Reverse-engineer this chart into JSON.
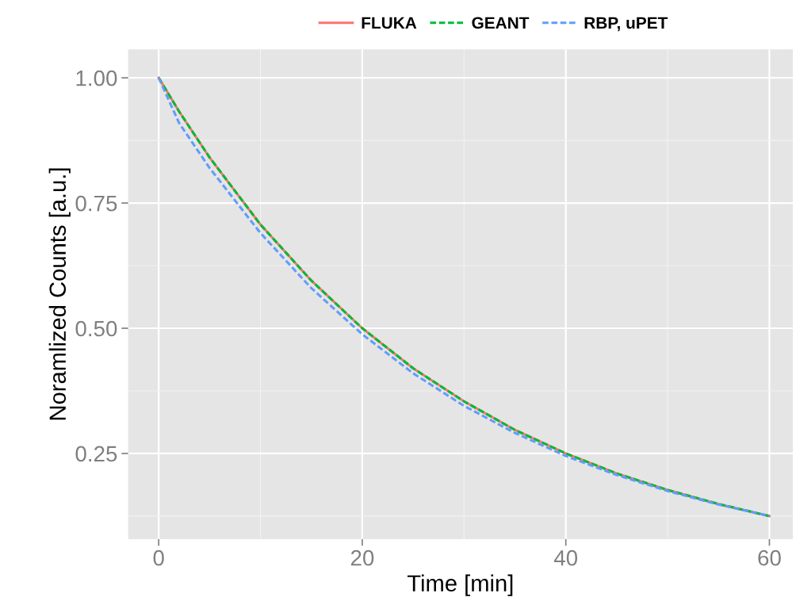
{
  "chart_data": {
    "type": "line",
    "xlabel": "Time [min]",
    "ylabel": "Noramlized Counts [a.u.]",
    "xlim": [
      -3,
      62.3
    ],
    "ylim": [
      0.079,
      1.057
    ],
    "xticks": [
      0,
      20,
      40,
      60
    ],
    "yticks": [
      {
        "value": 0.25,
        "label": "0.25"
      },
      {
        "value": 0.5,
        "label": "0.50"
      },
      {
        "value": 0.75,
        "label": "0.75"
      },
      {
        "value": 1.0,
        "label": "1.00"
      }
    ],
    "grid": true,
    "legend": "top",
    "x": [
      0,
      2,
      5,
      10,
      15,
      20,
      25,
      30,
      35,
      40,
      45,
      50,
      55,
      60
    ],
    "series": [
      {
        "name": "FLUKA",
        "color": "#f8766d",
        "line_style": "solid",
        "values": [
          1.0,
          0.933,
          0.841,
          0.707,
          0.595,
          0.5,
          0.42,
          0.354,
          0.297,
          0.25,
          0.21,
          0.177,
          0.149,
          0.125
        ]
      },
      {
        "name": "GEANT",
        "color": "#00ba38",
        "line_style": "dashed",
        "values": [
          1.0,
          0.933,
          0.841,
          0.707,
          0.595,
          0.5,
          0.42,
          0.354,
          0.297,
          0.25,
          0.21,
          0.177,
          0.149,
          0.125
        ]
      },
      {
        "name": "RBP, uPET",
        "color": "#619cff",
        "line_style": "dashed",
        "values": [
          1.0,
          0.91,
          0.82,
          0.69,
          0.58,
          0.488,
          0.41,
          0.345,
          0.291,
          0.245,
          0.207,
          0.175,
          0.148,
          0.125
        ]
      }
    ]
  }
}
